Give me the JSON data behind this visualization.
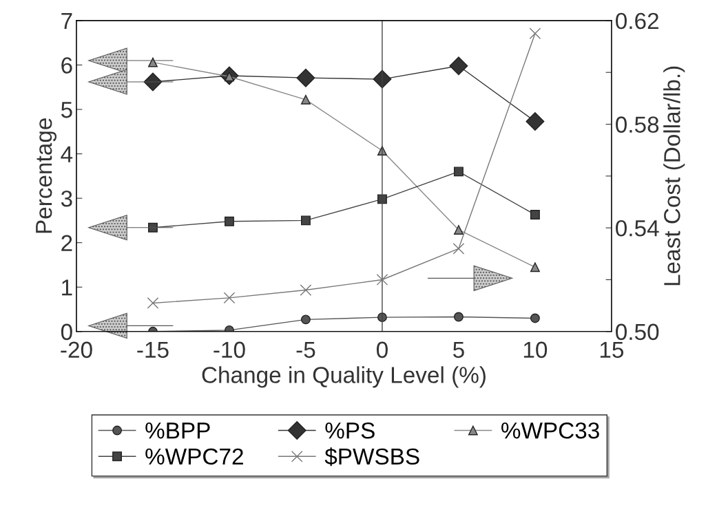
{
  "chart_data": {
    "type": "line",
    "xlabel": "Change in Quality Level (%)",
    "ylabel": "Percentage",
    "y2label": "Least Cost (Dollar/lb.)",
    "x": [
      -15,
      -10,
      -5,
      0,
      5,
      10
    ],
    "series": [
      {
        "name": "%BPP",
        "color": "#555555",
        "marker": "circle",
        "values": [
          0.0,
          0.03,
          0.27,
          0.32,
          0.33,
          0.3
        ]
      },
      {
        "name": "%PS",
        "color": "#333333",
        "marker": "diamond",
        "values": [
          5.62,
          5.76,
          5.71,
          5.68,
          5.98,
          4.73
        ]
      },
      {
        "name": "%WPC33",
        "color": "#888888",
        "marker": "triangle",
        "values": [
          6.06,
          5.74,
          5.22,
          4.07,
          2.29,
          1.45
        ]
      },
      {
        "name": "%WPC72",
        "color": "#444444",
        "marker": "square",
        "values": [
          2.34,
          2.48,
          2.5,
          2.98,
          3.6,
          2.63
        ]
      },
      {
        "name": "$PWSBS",
        "color": "#777777",
        "marker": "cross",
        "axis": "y2",
        "values": [
          0.511,
          0.513,
          0.516,
          0.52,
          0.532,
          0.615
        ]
      }
    ],
    "xlim": [
      -20,
      15
    ],
    "xticks": [
      -20,
      -15,
      -10,
      -5,
      0,
      5,
      10,
      15
    ],
    "ylim": [
      0,
      7
    ],
    "yticks": [
      0,
      1,
      2,
      3,
      4,
      5,
      6,
      7
    ],
    "y2lim": [
      0.5,
      0.62
    ],
    "y2ticks": [
      {
        "value": 0.5,
        "label": "0.50"
      },
      {
        "value": 0.52,
        "label": null
      },
      {
        "value": 0.54,
        "label": "0.54"
      },
      {
        "value": 0.56,
        "label": null
      },
      {
        "value": 0.58,
        "label": "0.58"
      },
      {
        "value": 0.6,
        "label": null
      },
      {
        "value": 0.62,
        "label": "0.62"
      }
    ],
    "ref_lines": [
      {
        "axis": "x",
        "value": 0,
        "color": "#444444"
      }
    ],
    "grid": false,
    "legend": "bottom",
    "line_style": "solid"
  }
}
